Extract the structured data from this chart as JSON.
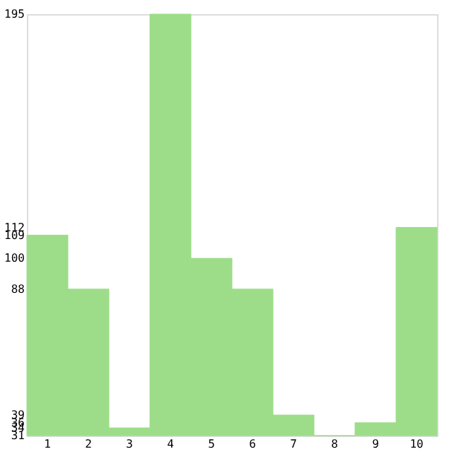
{
  "chart_data": {
    "type": "bar",
    "categories": [
      "1",
      "2",
      "3",
      "4",
      "5",
      "6",
      "7",
      "8",
      "9",
      "10"
    ],
    "values": [
      109,
      88,
      34,
      195,
      100,
      88,
      39,
      31,
      36,
      112
    ],
    "color": "#9ddd89",
    "ylim": [
      31,
      195
    ],
    "yticks": [
      195,
      112,
      109,
      100,
      88,
      39,
      36,
      34,
      31
    ],
    "grid": false
  }
}
